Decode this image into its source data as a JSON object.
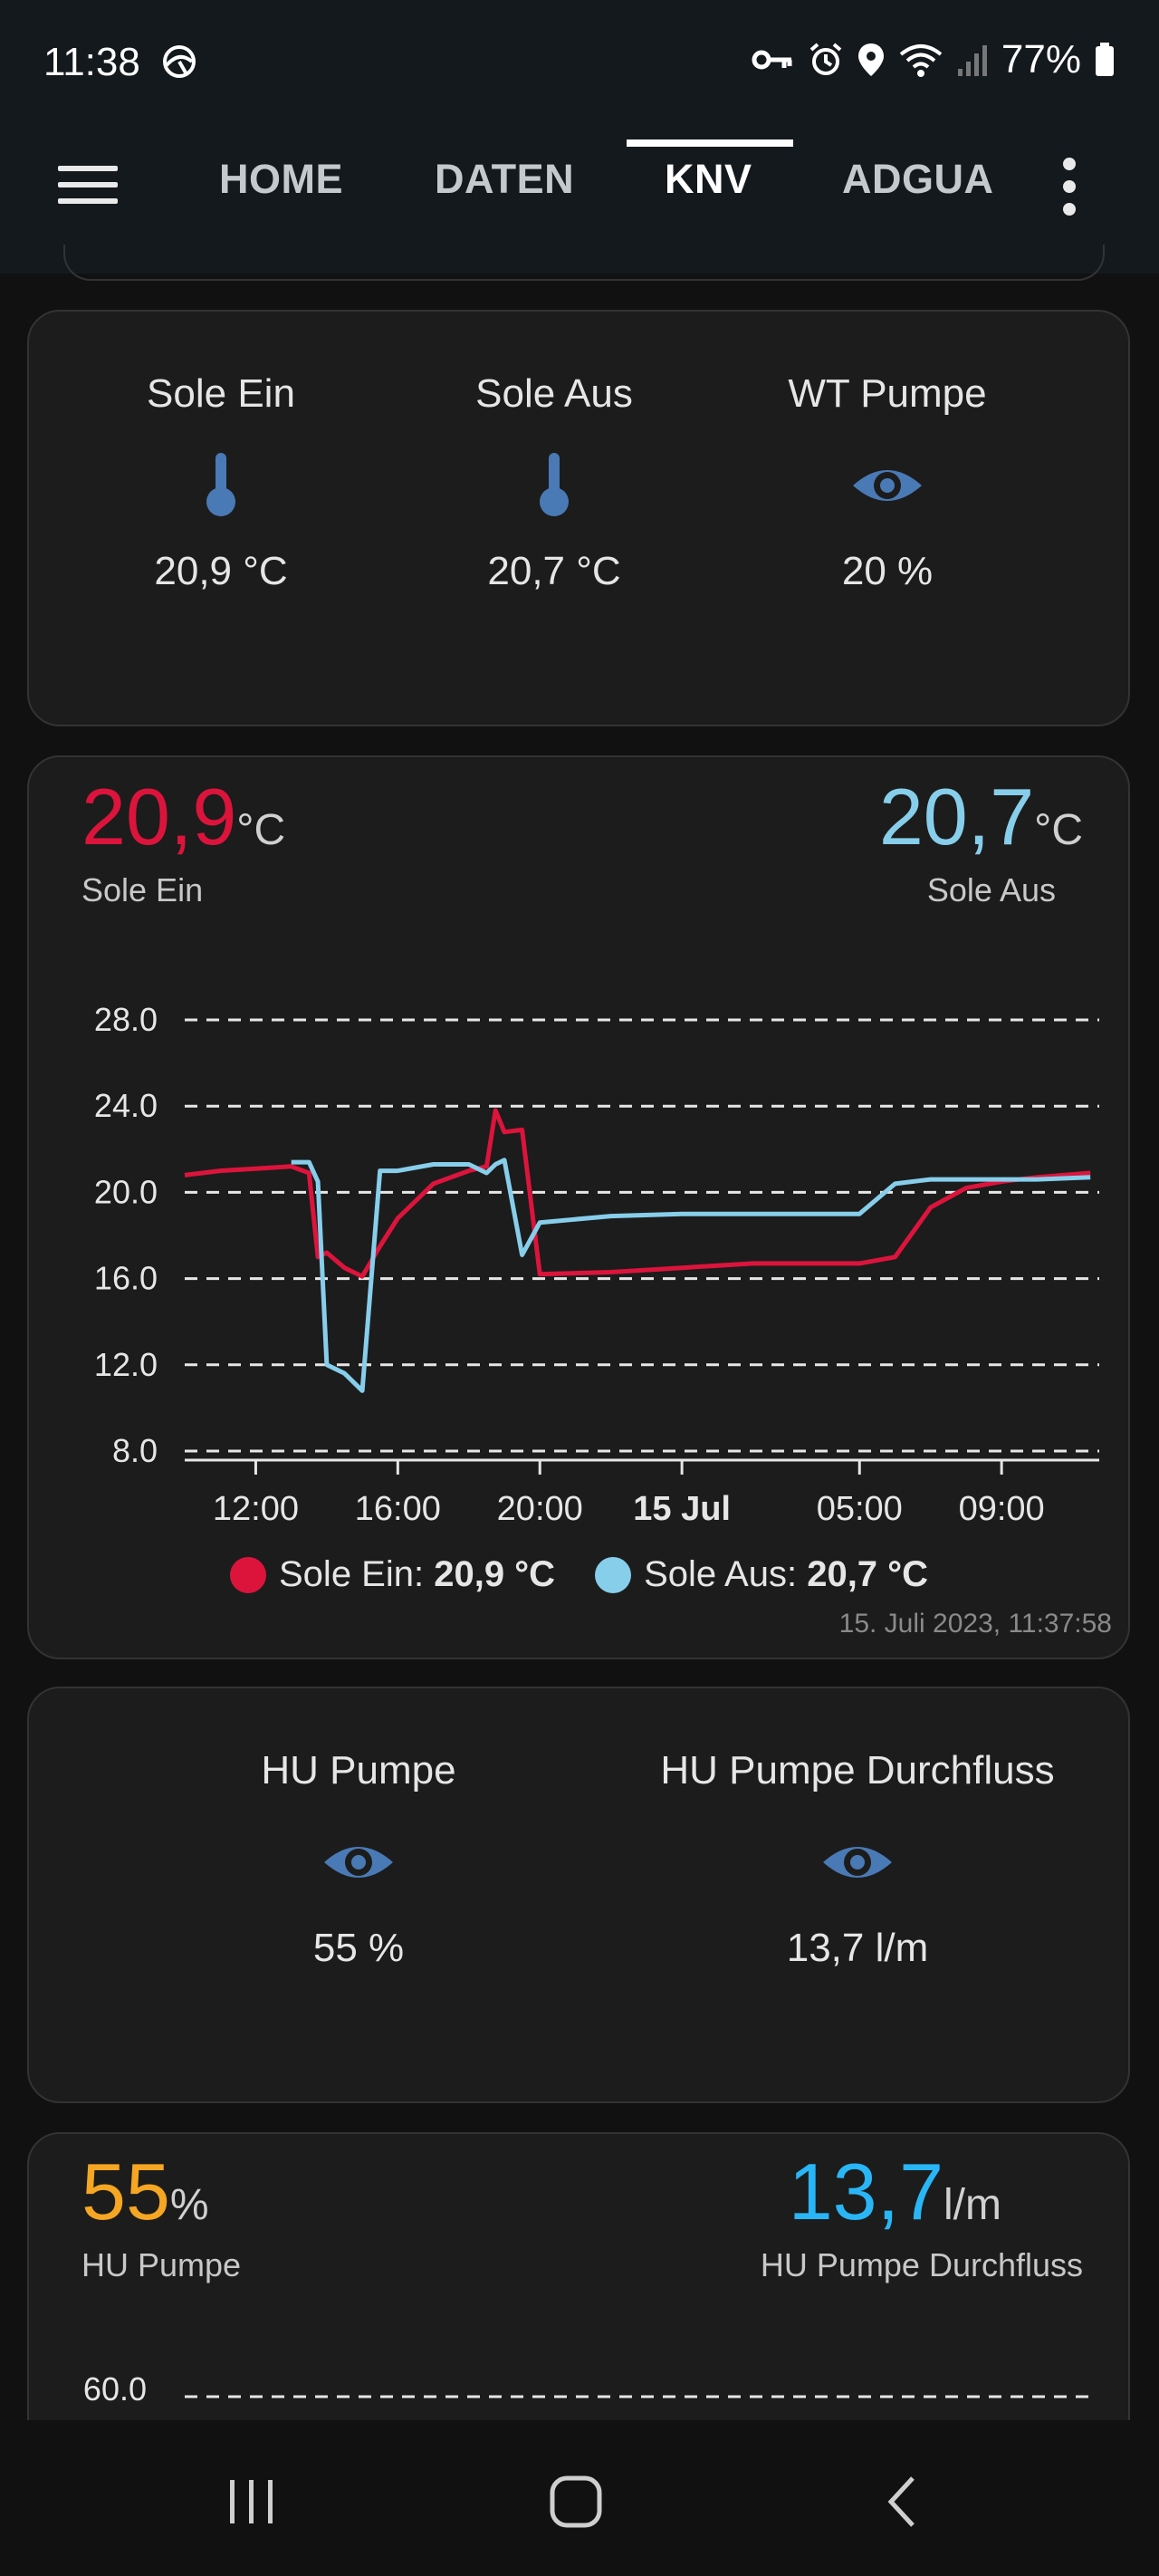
{
  "status_bar": {
    "time": "11:38",
    "battery": "77%",
    "icons": [
      "vpn-key-icon",
      "alarm-icon",
      "location-icon",
      "wifi-icon",
      "signal-icon",
      "battery-icon"
    ]
  },
  "app_bar": {
    "tabs": [
      {
        "label": "HOME",
        "active": false
      },
      {
        "label": "DATEN",
        "active": false
      },
      {
        "label": "KNV",
        "active": true
      },
      {
        "label": "ADGUA",
        "active": false
      }
    ]
  },
  "card_sensors": {
    "tiles": [
      {
        "label": "Sole Ein",
        "icon": "thermometer-icon",
        "value": "20,9 °C"
      },
      {
        "label": "Sole Aus",
        "icon": "thermometer-icon",
        "value": "20,7 °C"
      },
      {
        "label": "WT Pumpe",
        "icon": "eye-icon",
        "value": "20 %"
      }
    ]
  },
  "card_temp_chart": {
    "left": {
      "value": "20,9",
      "unit": "°C",
      "label": "Sole Ein"
    },
    "right": {
      "value": "20,7",
      "unit": "°C",
      "label": "Sole Aus"
    },
    "legend": [
      {
        "name": "Sole Ein",
        "value": "20,9 °C",
        "color": "#dc143c"
      },
      {
        "name": "Sole Aus",
        "value": "20,7 °C",
        "color": "#87ceeb"
      }
    ],
    "timestamp": "15. Juli 2023, 11:37:58"
  },
  "card_pump": {
    "tiles": [
      {
        "label": "HU Pumpe",
        "icon": "eye-icon",
        "value": "55 %"
      },
      {
        "label": "HU Pumpe Durchfluss",
        "icon": "eye-icon",
        "value": "13,7 l/m"
      }
    ]
  },
  "card_pump_chart": {
    "left": {
      "value": "55",
      "unit": "%",
      "label": "HU Pumpe",
      "color": "#f5a623"
    },
    "right": {
      "value": "13,7",
      "unit": "l/m",
      "label": "HU Pumpe Durchfluss",
      "color": "#29b6f6"
    },
    "y_tick_top": "60.0"
  },
  "chart_data": [
    {
      "type": "line",
      "title": "",
      "xlabel": "",
      "ylabel": "",
      "x_tick_labels": [
        "12:00",
        "16:00",
        "20:00",
        "15 Jul",
        "05:00",
        "09:00"
      ],
      "y_tick_labels": [
        "28.0",
        "24.0",
        "20.0",
        "16.0",
        "12.0",
        "8.0"
      ],
      "ylim": [
        8,
        28
      ],
      "grid": true,
      "legend_position": "bottom",
      "x": [
        "10:00",
        "11:00",
        "12:00",
        "13:00",
        "13:30",
        "13:45",
        "14:00",
        "14:30",
        "15:00",
        "15:30",
        "16:00",
        "17:00",
        "18:00",
        "18:30",
        "18:45",
        "19:00",
        "19:30",
        "20:00",
        "22:00",
        "00:00",
        "02:00",
        "04:00",
        "05:00",
        "06:00",
        "07:00",
        "08:00",
        "09:00",
        "10:00",
        "11:30"
      ],
      "series": [
        {
          "name": "Sole Ein",
          "color": "#dc143c",
          "values": [
            20.8,
            21.0,
            21.1,
            21.2,
            20.9,
            17.0,
            17.2,
            16.5,
            16.1,
            17.5,
            18.8,
            20.4,
            21.0,
            21.2,
            23.8,
            22.8,
            22.9,
            16.2,
            16.3,
            16.5,
            16.7,
            16.7,
            16.7,
            17.0,
            19.3,
            20.2,
            20.5,
            20.7,
            20.9
          ]
        },
        {
          "name": "Sole Aus",
          "color": "#87ceeb",
          "values": [
            null,
            null,
            null,
            21.4,
            21.4,
            20.5,
            12.0,
            11.6,
            10.8,
            21.0,
            21.0,
            21.3,
            21.3,
            20.9,
            21.3,
            21.5,
            17.1,
            18.6,
            18.9,
            19.0,
            19.0,
            19.0,
            19.0,
            20.4,
            20.6,
            20.6,
            20.6,
            20.6,
            20.7
          ]
        }
      ]
    },
    {
      "type": "line",
      "title": "",
      "y_tick_labels": [
        "60.0"
      ],
      "series": []
    }
  ]
}
